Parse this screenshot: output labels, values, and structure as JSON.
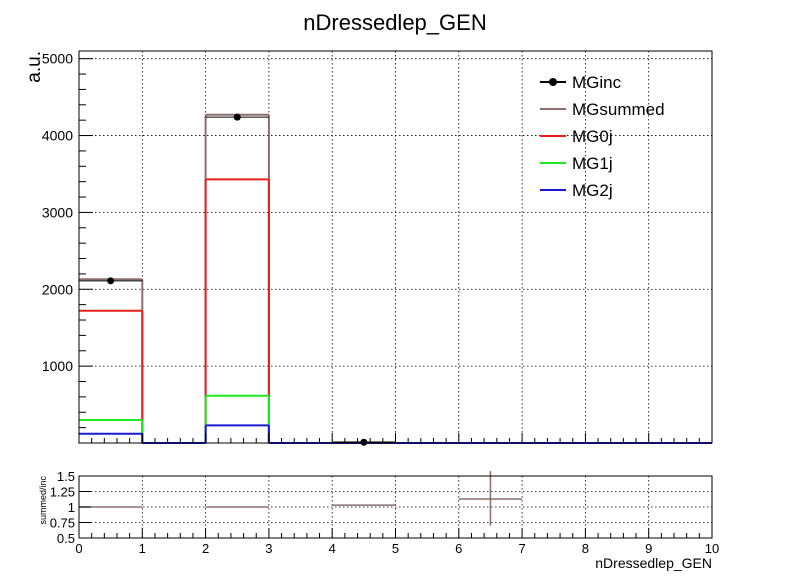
{
  "chart_data": [
    {
      "type": "histogram",
      "title": "nDressedlep_GEN",
      "ylabel": "a.u.",
      "xlabel": "",
      "xlim": [
        0,
        10
      ],
      "ylim": [
        0,
        5100
      ],
      "grid": true,
      "legend_position": "top-right",
      "bin_edges": [
        0,
        1,
        2,
        3,
        4,
        5,
        6,
        7,
        8,
        9,
        10
      ],
      "x_tick_labels": [
        "0",
        "1",
        "2",
        "3",
        "4",
        "5",
        "6",
        "7",
        "8",
        "9",
        "10"
      ],
      "y_tick_labels": [
        "1000",
        "2000",
        "3000",
        "4000",
        "5000"
      ],
      "y_ticks": [
        1000,
        2000,
        3000,
        4000,
        5000
      ],
      "series": [
        {
          "name": "MGinc",
          "style": "points",
          "color": "#000000",
          "values": [
            2110,
            0,
            4240,
            0,
            10,
            0,
            0,
            0,
            0,
            0
          ]
        },
        {
          "name": "MGsummed",
          "style": "step",
          "color": "#8c6e6e",
          "values": [
            2130,
            0,
            4270,
            0,
            10,
            0,
            0,
            0,
            0,
            0
          ]
        },
        {
          "name": "MG0j",
          "style": "step",
          "color": "#e8201a",
          "values": [
            1720,
            0,
            3430,
            0,
            0,
            0,
            0,
            0,
            0,
            0
          ]
        },
        {
          "name": "MG1j",
          "style": "step",
          "color": "#1ee81e",
          "values": [
            300,
            0,
            615,
            0,
            0,
            0,
            0,
            0,
            0,
            0
          ]
        },
        {
          "name": "MG2j",
          "style": "step",
          "color": "#1a1ad4",
          "values": [
            120,
            0,
            230,
            0,
            0,
            0,
            0,
            0,
            0,
            0
          ]
        }
      ]
    },
    {
      "type": "scatter",
      "title": "",
      "ylabel": "summed/inc",
      "xlabel": "nDressedlep_GEN",
      "xlim": [
        0,
        10
      ],
      "ylim": [
        0.5,
        1.5
      ],
      "x_tick_labels": [
        "0",
        "1",
        "2",
        "3",
        "4",
        "5",
        "6",
        "7",
        "8",
        "9",
        "10"
      ],
      "y_tick_labels": [
        "0.5",
        "0.75",
        "1",
        "1.25",
        "1.5"
      ],
      "y_ticks": [
        0.5,
        0.75,
        1,
        1.25,
        1.5
      ],
      "color": "#8c6e6e",
      "points": [
        {
          "x": 0.5,
          "y": 1.0,
          "xerr": 0.5,
          "yerr_low": 0.0,
          "yerr_high": 0.0
        },
        {
          "x": 2.5,
          "y": 1.0,
          "xerr": 0.5,
          "yerr_low": 0.0,
          "yerr_high": 0.0
        },
        {
          "x": 4.5,
          "y": 1.03,
          "xerr": 0.5,
          "yerr_low": 0.0,
          "yerr_high": 0.0
        },
        {
          "x": 6.5,
          "y": 1.13,
          "xerr": 0.5,
          "yerr_low": 0.43,
          "yerr_high": 0.45
        }
      ]
    }
  ]
}
